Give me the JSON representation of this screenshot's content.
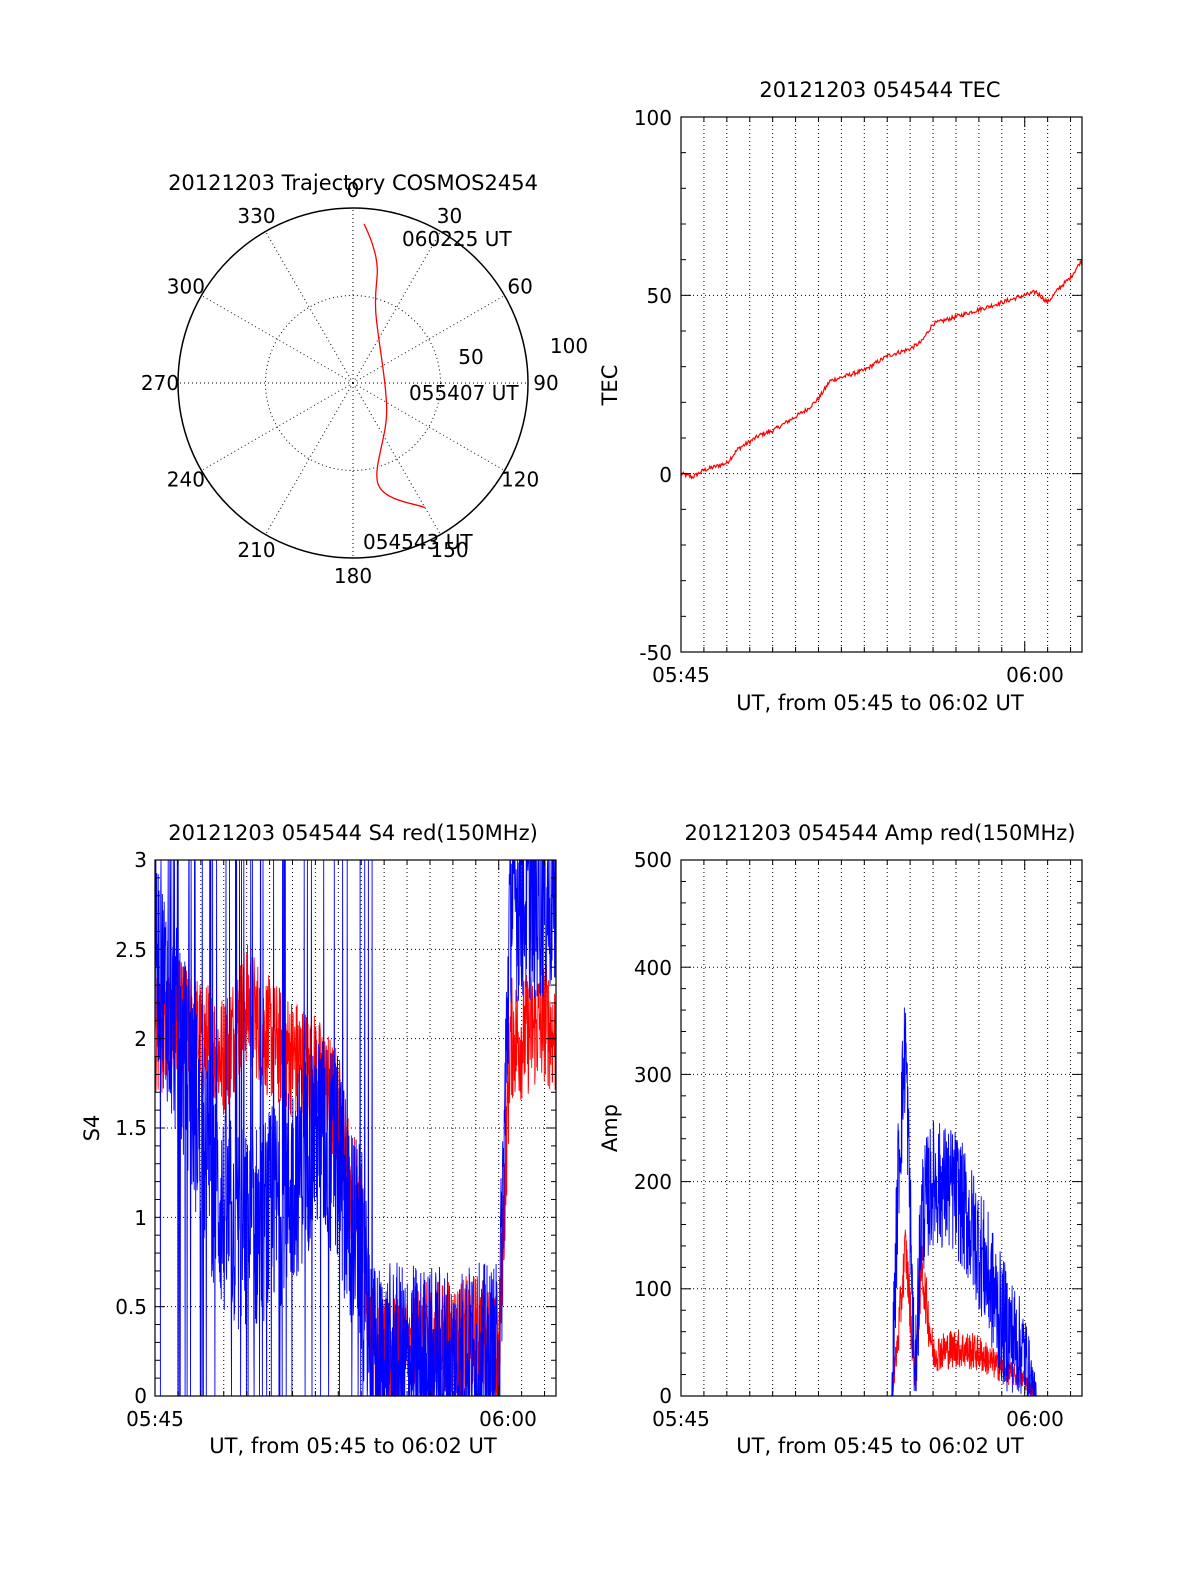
{
  "colors": {
    "red_series": "#ff0000",
    "blue_series": "#0000ff"
  },
  "chart_data": [
    {
      "type": "polar",
      "title": "20121203 Trajectory COSMOS2454",
      "angle_labels": [
        "0",
        "30",
        "60",
        "90",
        "120",
        "150",
        "180",
        "210",
        "240",
        "270",
        "300",
        "330"
      ],
      "radius_labels": [
        "50",
        "100"
      ],
      "trajectory": {
        "color": "red",
        "points_az_el": [
          [
            150,
            16
          ],
          [
            166,
            36
          ],
          [
            128,
            68
          ],
          [
            18,
            52
          ],
          [
            12,
            30
          ],
          [
            8,
            18
          ],
          [
            4,
            8
          ]
        ]
      },
      "annotations": [
        "060225 UT",
        "055407 UT",
        "054543 UT"
      ]
    },
    {
      "type": "line",
      "title": "20121203 054544 TEC",
      "xlabel": "UT, from 05:45 to 06:02 UT",
      "ylabel": "TEC",
      "xlim_min": [
        0,
        17.5
      ],
      "xtick_labels": [
        "05:45",
        "06:00"
      ],
      "ylim": [
        -50,
        100
      ],
      "ytick_labels": [
        "-50",
        "0",
        "50",
        "100"
      ],
      "grid": true,
      "series": [
        {
          "color": "red",
          "x": [
            0,
            0.5,
            1,
            1.5,
            2,
            2.5,
            3,
            3.5,
            4,
            4.5,
            5,
            5.5,
            6,
            6.5,
            7,
            7.5,
            8,
            8.5,
            9,
            9.5,
            10,
            10.5,
            11,
            11.5,
            12,
            12.5,
            13,
            13.5,
            14,
            14.5,
            15,
            15.5,
            16,
            16.5,
            17,
            17.5
          ],
          "y": [
            0,
            -1,
            1,
            2,
            3,
            7,
            9,
            11,
            12,
            14,
            16,
            18,
            21,
            26,
            27,
            28,
            29,
            31,
            33,
            34,
            35,
            37,
            42,
            43,
            44,
            45,
            46,
            47,
            48,
            49,
            50,
            51,
            48,
            52,
            55,
            60
          ]
        }
      ]
    },
    {
      "type": "line",
      "title": "20121203 054544 S4 red(150MHz)",
      "xlabel": "UT, from 05:45 to 06:02 UT",
      "ylabel": "S4",
      "xlim_min": [
        0,
        17.5
      ],
      "xtick_labels": [
        "05:45",
        "06:00"
      ],
      "ylim": [
        0,
        3
      ],
      "ytick_labels": [
        "0",
        "0.5",
        "1",
        "1.5",
        "2",
        "2.5",
        "3"
      ],
      "grid": true,
      "series": [
        {
          "color": "red",
          "noise": 0.35,
          "x": [
            0,
            1,
            2,
            3,
            4,
            5,
            6,
            7,
            8,
            8.5,
            9,
            9.5,
            10,
            11,
            12,
            13,
            14,
            14.5,
            15,
            15.5,
            16,
            17,
            17.5
          ],
          "y": [
            2.0,
            2.1,
            2.0,
            1.9,
            2.2,
            2.0,
            1.9,
            1.8,
            1.6,
            1.2,
            1.0,
            0.3,
            0.2,
            0.25,
            0.3,
            0.3,
            0.35,
            0.3,
            0.2,
            2.0,
            2.0,
            2.1,
            2.0
          ]
        },
        {
          "color": "blue",
          "noise": 0.6,
          "x": [
            0,
            1,
            2,
            3,
            4,
            5,
            6,
            7,
            8,
            8.5,
            9,
            9.5,
            10,
            11,
            12,
            13,
            14,
            14.5,
            15,
            15.5,
            16,
            17,
            17.5
          ],
          "y": [
            2.5,
            2.0,
            1.5,
            1.0,
            0.9,
            1.0,
            1.2,
            1.5,
            1.3,
            1.0,
            0.8,
            0.15,
            0.15,
            0.15,
            0.15,
            0.15,
            0.15,
            0.15,
            0.15,
            2.8,
            2.8,
            2.8,
            2.8
          ]
        }
      ]
    },
    {
      "type": "line",
      "title": "20121203 054544 Amp red(150MHz)",
      "xlabel": "UT, from 05:45 to 06:02 UT",
      "ylabel": "Amp",
      "xlim_min": [
        0,
        17.5
      ],
      "xtick_labels": [
        "05:45",
        "06:00"
      ],
      "ylim": [
        0,
        500
      ],
      "ytick_labels": [
        "0",
        "100",
        "200",
        "300",
        "400",
        "500"
      ],
      "grid": true,
      "series": [
        {
          "color": "red",
          "noise": 25,
          "x": [
            0,
            9.2,
            9.5,
            9.8,
            10.2,
            10.5,
            11,
            12,
            13,
            14,
            15,
            15.5,
            17.5
          ],
          "y": [
            0,
            0,
            60,
            140,
            20,
            120,
            40,
            45,
            40,
            25,
            15,
            0,
            0
          ]
        },
        {
          "color": "blue",
          "noise": 60,
          "x": [
            0,
            9.2,
            9.5,
            9.8,
            10.2,
            10.5,
            11,
            12,
            13,
            14,
            15,
            15.5,
            17.5
          ],
          "y": [
            0,
            0,
            220,
            330,
            10,
            170,
            200,
            190,
            140,
            70,
            40,
            0,
            0
          ]
        }
      ]
    }
  ]
}
